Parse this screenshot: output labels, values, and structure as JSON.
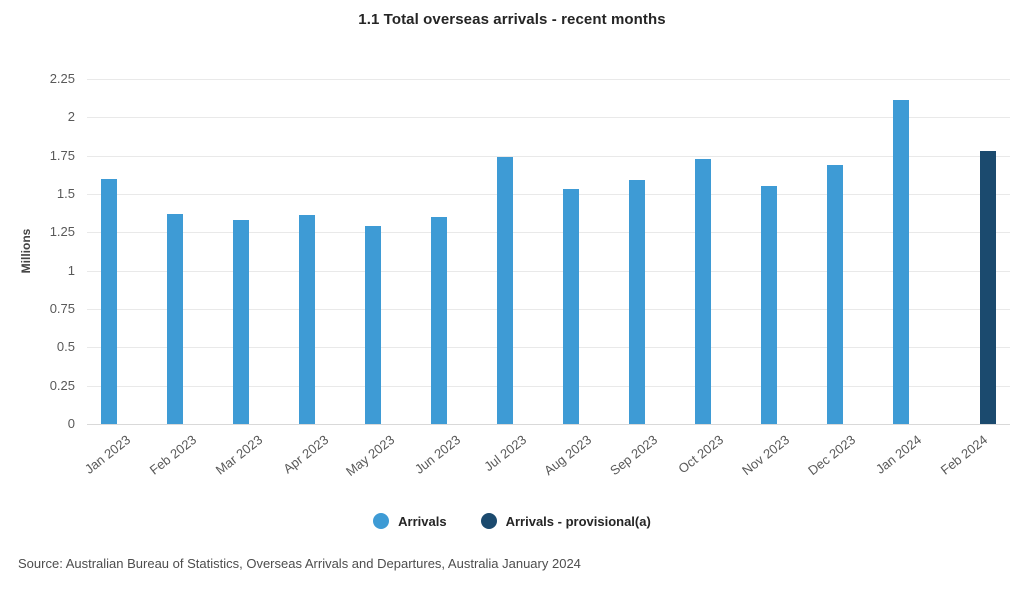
{
  "title": "1.1 Total overseas arrivals - recent months",
  "source": "Source: Australian Bureau of Statistics, Overseas Arrivals and Departures, Australia January 2024",
  "colors": {
    "arrivals": "#3e9bd5",
    "provisional": "#1b4a6e",
    "gridline": "#e9e9e9",
    "baseline": "#d9d9d9"
  },
  "chart_data": {
    "type": "bar",
    "categories": [
      "Jan 2023",
      "Feb 2023",
      "Mar 2023",
      "Apr 2023",
      "May 2023",
      "Jun 2023",
      "Jul 2023",
      "Aug 2023",
      "Sep 2023",
      "Oct 2023",
      "Nov 2023",
      "Dec 2023",
      "Jan 2024",
      "Feb 2024"
    ],
    "series": [
      {
        "name": "Arrivals",
        "color": "#3e9bd5",
        "values": [
          1.6,
          1.37,
          1.33,
          1.36,
          1.29,
          1.35,
          1.74,
          1.53,
          1.59,
          1.73,
          1.55,
          1.69,
          2.11,
          null
        ]
      },
      {
        "name": "Arrivals - provisional(a)",
        "color": "#1b4a6e",
        "values": [
          null,
          null,
          null,
          null,
          null,
          null,
          null,
          null,
          null,
          null,
          null,
          null,
          null,
          1.78
        ]
      }
    ],
    "title": "1.1 Total overseas arrivals - recent months",
    "xlabel": "",
    "ylabel": "Millions",
    "ylim": [
      0,
      2.25
    ],
    "yticks": [
      0,
      0.25,
      0.5,
      0.75,
      1,
      1.25,
      1.5,
      1.75,
      2,
      2.25
    ],
    "ytick_labels": [
      "0",
      "0.25",
      "0.5",
      "0.75",
      "1",
      "1.25",
      "1.5",
      "1.75",
      "2",
      "2.25"
    ],
    "grid": true,
    "legend_position": "bottom"
  }
}
